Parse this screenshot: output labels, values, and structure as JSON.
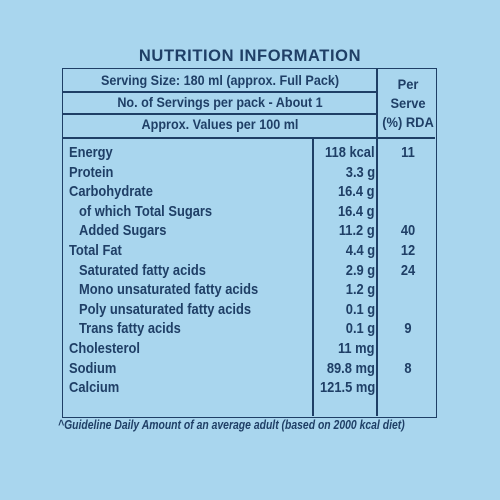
{
  "title": "NUTRITION INFORMATION",
  "header": {
    "serving_size": "Serving Size: 180 ml (approx. Full Pack)",
    "servings_per_pack": "No. of Servings per pack - About 1",
    "approx_values": "Approx. Values per 100 ml",
    "rda_col_line1": "Per",
    "rda_col_line2": "Serve",
    "rda_col_line3": "(%) RDA"
  },
  "rows": [
    {
      "name": "Energy",
      "value": "118 kcal",
      "rda": "11"
    },
    {
      "name": "Protein",
      "value": "3.3 g",
      "rda": ""
    },
    {
      "name": "Carbohydrate",
      "value": "16.4 g",
      "rda": ""
    },
    {
      "name": "of which Total Sugars",
      "value": "16.4 g",
      "rda": ""
    },
    {
      "name": "Added Sugars",
      "value": "11.2 g",
      "rda": "40"
    },
    {
      "name": "Total Fat",
      "value": "4.4 g",
      "rda": "12"
    },
    {
      "name": "Saturated fatty acids",
      "value": "2.9 g",
      "rda": "24"
    },
    {
      "name": "Mono unsaturated fatty acids",
      "value": "1.2 g",
      "rda": ""
    },
    {
      "name": "Poly unsaturated fatty acids",
      "value": "0.1 g",
      "rda": ""
    },
    {
      "name": "Trans fatty acids",
      "value": "0.1 g",
      "rda": "9"
    },
    {
      "name": "Cholesterol",
      "value": "11 mg",
      "rda": ""
    },
    {
      "name": "Sodium",
      "value": "89.8 mg",
      "rda": "8"
    },
    {
      "name": "Calcium",
      "value": "121.5 mg",
      "rda": ""
    }
  ],
  "footnote": "^Guideline Daily Amount of an average adult (based on 2000 kcal diet)"
}
